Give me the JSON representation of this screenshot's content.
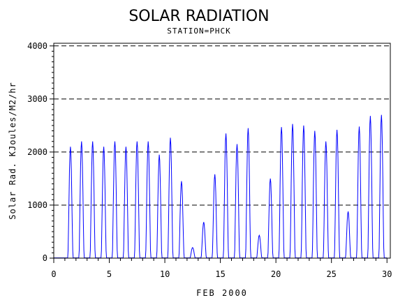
{
  "chart_data": {
    "type": "line",
    "title": "SOLAR RADIATION",
    "subtitle": "STATION=PHCK",
    "xlabel": "FEB 2000",
    "ylabel": "Solar Rad. KJoules/M2/hr",
    "xlim": [
      0,
      30.3
    ],
    "ylim": [
      0,
      4050
    ],
    "x_ticks": [
      0,
      5,
      10,
      15,
      20,
      25,
      30
    ],
    "y_ticks": [
      0,
      1000,
      2000,
      3000,
      4000
    ],
    "grid": "dashed horizontal at y ticks",
    "series": [
      {
        "color": "#0000ff",
        "daily_peaks": [
          {
            "day": 1,
            "peak": 2100
          },
          {
            "day": 2,
            "peak": 2200
          },
          {
            "day": 3,
            "peak": 2200
          },
          {
            "day": 4,
            "peak": 2100
          },
          {
            "day": 5,
            "peak": 2200
          },
          {
            "day": 6,
            "peak": 2100
          },
          {
            "day": 7,
            "peak": 2200
          },
          {
            "day": 8,
            "peak": 2200
          },
          {
            "day": 9,
            "peak": 1950
          },
          {
            "day": 10,
            "peak": 2270
          },
          {
            "day": 11,
            "peak": 1450
          },
          {
            "day": 12,
            "peak": 200
          },
          {
            "day": 13,
            "peak": 680
          },
          {
            "day": 14,
            "peak": 1580
          },
          {
            "day": 15,
            "peak": 2350
          },
          {
            "day": 16,
            "peak": 2150
          },
          {
            "day": 17,
            "peak": 2450
          },
          {
            "day": 18,
            "peak": 430
          },
          {
            "day": 19,
            "peak": 1500
          },
          {
            "day": 20,
            "peak": 2470
          },
          {
            "day": 21,
            "peak": 2530
          },
          {
            "day": 22,
            "peak": 2500
          },
          {
            "day": 23,
            "peak": 2400
          },
          {
            "day": 24,
            "peak": 2200
          },
          {
            "day": 25,
            "peak": 2420
          },
          {
            "day": 26,
            "peak": 880
          },
          {
            "day": 27,
            "peak": 2480
          },
          {
            "day": 28,
            "peak": 2680
          },
          {
            "day": 29,
            "peak": 2700
          }
        ]
      }
    ]
  },
  "colors": {
    "line": "#0000ff",
    "axis": "#000000",
    "background": "#ffffff"
  }
}
